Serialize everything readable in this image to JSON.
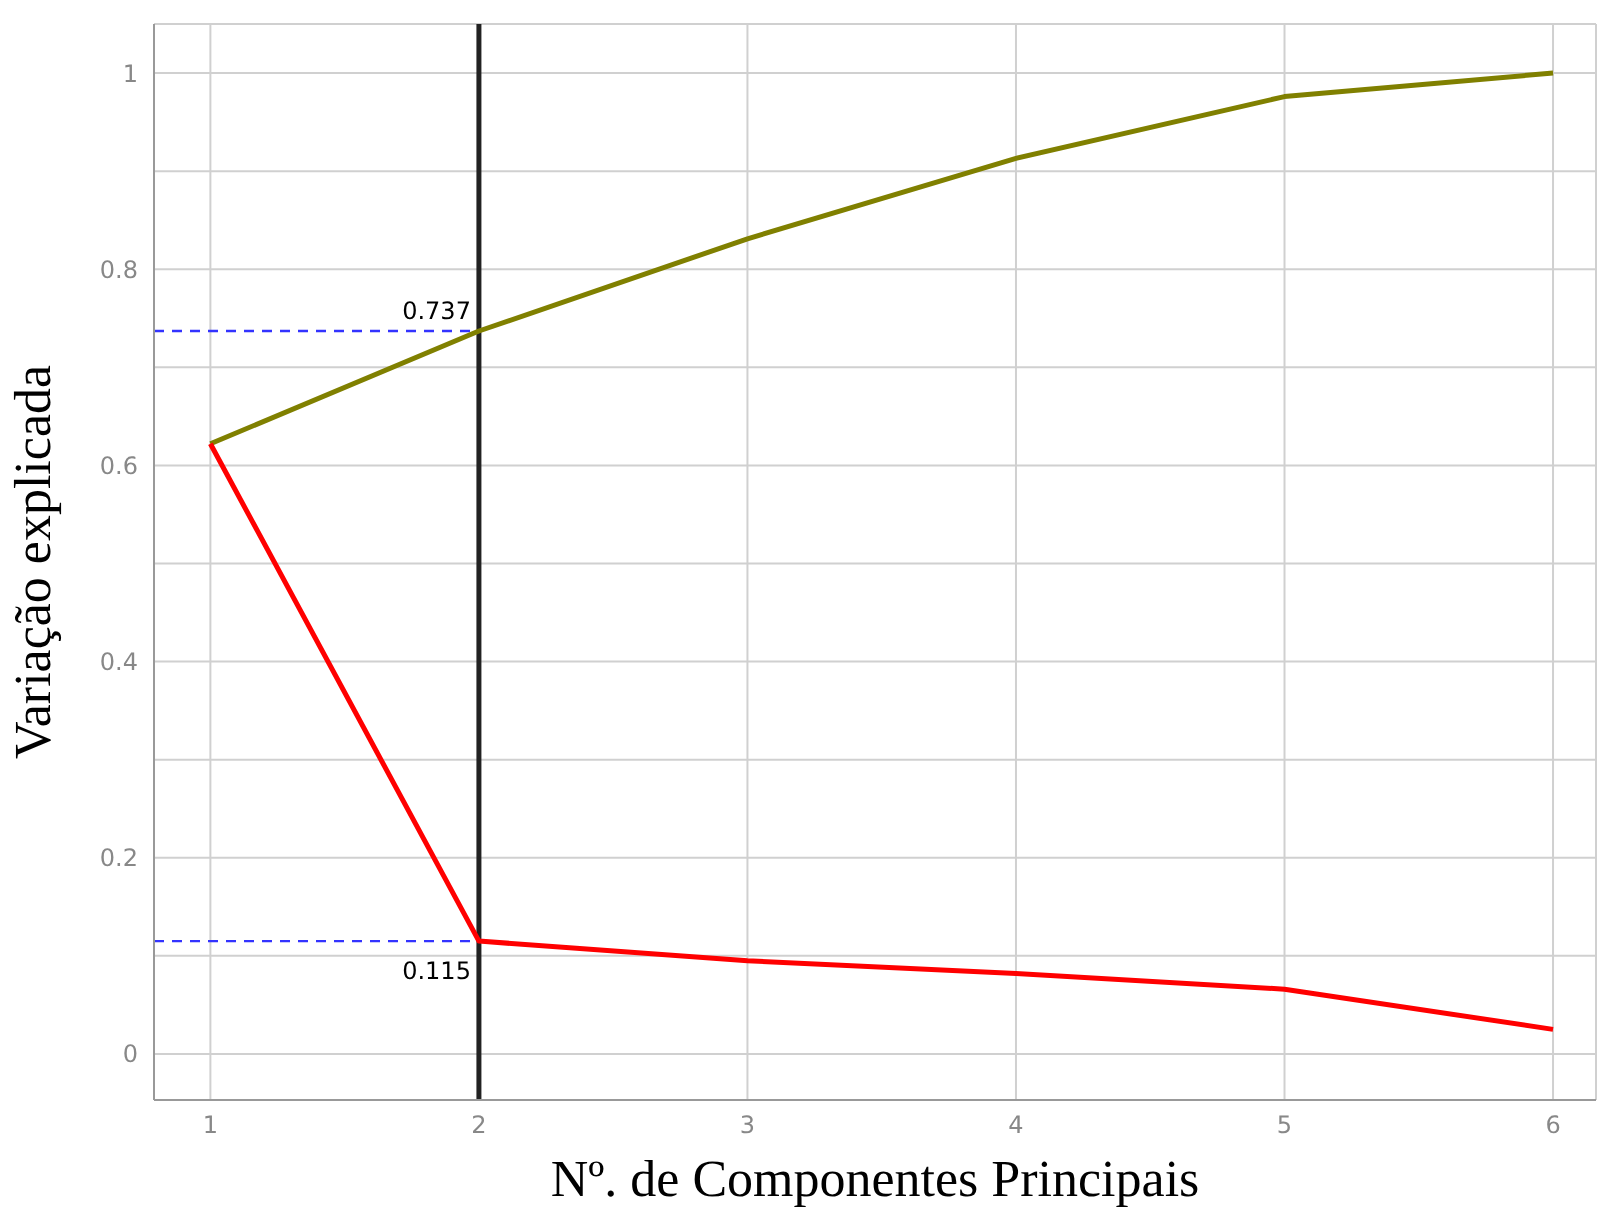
{
  "chart_data": {
    "type": "line",
    "xlabel": "Nº. de Componentes Principais",
    "ylabel": "Variação explicada",
    "x": [
      1,
      2,
      3,
      4,
      5,
      6
    ],
    "series": [
      {
        "color": "#808000",
        "values": [
          0.622,
          0.737,
          0.831,
          0.913,
          0.976,
          1.0
        ]
      },
      {
        "color": "#ff0000",
        "values": [
          0.622,
          0.115,
          0.095,
          0.082,
          0.066,
          0.025
        ]
      }
    ],
    "xlim": [
      0.79,
      6.16
    ],
    "xticks": [
      1,
      2,
      3,
      4,
      5,
      6
    ],
    "ylim": [
      -0.047,
      1.05
    ],
    "yticks": [
      0,
      {
        "value": 0.1,
        "label": null
      },
      0.2,
      {
        "value": 0.3,
        "label": null
      },
      0.4,
      {
        "value": 0.5,
        "label": null
      },
      0.6,
      {
        "value": 0.7,
        "label": null
      },
      0.8,
      {
        "value": 0.9,
        "label": null
      },
      1
    ],
    "grid": true,
    "marker": "none",
    "line_style": "solid",
    "ref_lines": [
      {
        "axis": "x",
        "value": 2,
        "color": "#222222",
        "line_style": "solid"
      },
      {
        "axis": "y",
        "value": 0.737,
        "label": "0.737",
        "color": "#3333ff",
        "line_style": "dashed"
      },
      {
        "axis": "y",
        "value": 0.115,
        "label": "0.115",
        "color": "#3333ff",
        "line_style": "dashed"
      }
    ]
  }
}
